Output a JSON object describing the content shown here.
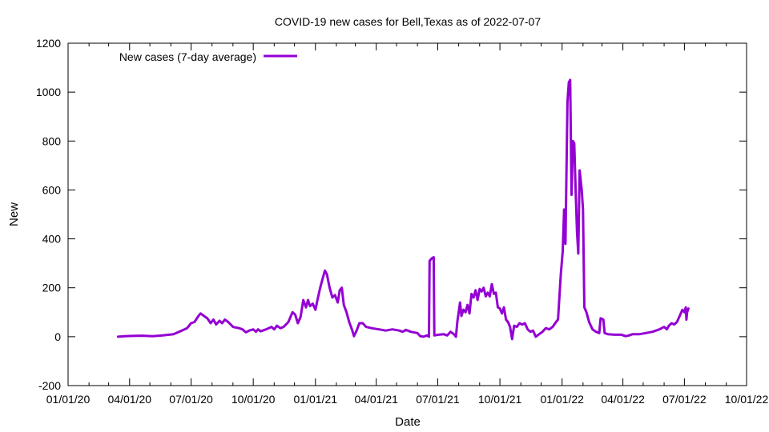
{
  "chart_data": {
    "type": "line",
    "title": "COVID-19 new cases for Bell,Texas as of 2022-07-07",
    "xlabel": "Date",
    "ylabel": "New",
    "ylim": [
      -200,
      1200
    ],
    "xlim": [
      "2020-01-01",
      "2022-10-01"
    ],
    "yticks": [
      -200,
      0,
      200,
      400,
      600,
      800,
      1000,
      1200
    ],
    "xticks": [
      {
        "date": "2020-01-01",
        "label": "01/01/20"
      },
      {
        "date": "2020-04-01",
        "label": "04/01/20"
      },
      {
        "date": "2020-07-01",
        "label": "07/01/20"
      },
      {
        "date": "2020-10-01",
        "label": "10/01/20"
      },
      {
        "date": "2021-01-01",
        "label": "01/01/21"
      },
      {
        "date": "2021-04-01",
        "label": "04/01/21"
      },
      {
        "date": "2021-07-01",
        "label": "07/01/21"
      },
      {
        "date": "2021-10-01",
        "label": "10/01/21"
      },
      {
        "date": "2022-01-01",
        "label": "01/01/22"
      },
      {
        "date": "2022-04-01",
        "label": "04/01/22"
      },
      {
        "date": "2022-07-01",
        "label": "07/01/22"
      },
      {
        "date": "2022-10-01",
        "label": "10/01/22"
      }
    ],
    "grid": false,
    "legend_position": "top-left",
    "series": [
      {
        "name": "New cases (7-day average)",
        "color": "#9400d3",
        "points": [
          [
            "2020-03-15",
            0
          ],
          [
            "2020-03-25",
            2
          ],
          [
            "2020-04-05",
            3
          ],
          [
            "2020-04-20",
            4
          ],
          [
            "2020-05-05",
            2
          ],
          [
            "2020-05-20",
            5
          ],
          [
            "2020-06-05",
            10
          ],
          [
            "2020-06-15",
            22
          ],
          [
            "2020-06-25",
            35
          ],
          [
            "2020-07-01",
            55
          ],
          [
            "2020-07-06",
            60
          ],
          [
            "2020-07-12",
            85
          ],
          [
            "2020-07-15",
            95
          ],
          [
            "2020-07-20",
            85
          ],
          [
            "2020-07-25",
            75
          ],
          [
            "2020-07-30",
            55
          ],
          [
            "2020-08-03",
            70
          ],
          [
            "2020-08-07",
            50
          ],
          [
            "2020-08-12",
            65
          ],
          [
            "2020-08-16",
            55
          ],
          [
            "2020-08-20",
            70
          ],
          [
            "2020-08-25",
            60
          ],
          [
            "2020-09-01",
            40
          ],
          [
            "2020-09-10",
            35
          ],
          [
            "2020-09-15",
            30
          ],
          [
            "2020-09-20",
            18
          ],
          [
            "2020-09-25",
            25
          ],
          [
            "2020-10-01",
            30
          ],
          [
            "2020-10-05",
            20
          ],
          [
            "2020-10-08",
            30
          ],
          [
            "2020-10-12",
            22
          ],
          [
            "2020-10-20",
            30
          ],
          [
            "2020-10-28",
            40
          ],
          [
            "2020-11-01",
            30
          ],
          [
            "2020-11-05",
            45
          ],
          [
            "2020-11-10",
            35
          ],
          [
            "2020-11-15",
            40
          ],
          [
            "2020-11-22",
            60
          ],
          [
            "2020-11-28",
            100
          ],
          [
            "2020-12-02",
            90
          ],
          [
            "2020-12-06",
            55
          ],
          [
            "2020-12-10",
            80
          ],
          [
            "2020-12-14",
            150
          ],
          [
            "2020-12-18",
            120
          ],
          [
            "2020-12-21",
            150
          ],
          [
            "2020-12-24",
            125
          ],
          [
            "2020-12-28",
            135
          ],
          [
            "2021-01-01",
            110
          ],
          [
            "2021-01-04",
            150
          ],
          [
            "2021-01-08",
            200
          ],
          [
            "2021-01-12",
            240
          ],
          [
            "2021-01-15",
            270
          ],
          [
            "2021-01-18",
            255
          ],
          [
            "2021-01-22",
            200
          ],
          [
            "2021-01-26",
            160
          ],
          [
            "2021-01-30",
            170
          ],
          [
            "2021-02-03",
            140
          ],
          [
            "2021-02-06",
            190
          ],
          [
            "2021-02-09",
            200
          ],
          [
            "2021-02-12",
            130
          ],
          [
            "2021-02-16",
            100
          ],
          [
            "2021-02-20",
            60
          ],
          [
            "2021-02-24",
            30
          ],
          [
            "2021-02-27",
            2
          ],
          [
            "2021-03-03",
            25
          ],
          [
            "2021-03-07",
            55
          ],
          [
            "2021-03-12",
            55
          ],
          [
            "2021-03-17",
            40
          ],
          [
            "2021-03-25",
            35
          ],
          [
            "2021-04-05",
            30
          ],
          [
            "2021-04-15",
            25
          ],
          [
            "2021-04-25",
            30
          ],
          [
            "2021-05-05",
            25
          ],
          [
            "2021-05-10",
            20
          ],
          [
            "2021-05-15",
            28
          ],
          [
            "2021-05-22",
            20
          ],
          [
            "2021-06-01",
            15
          ],
          [
            "2021-06-05",
            2
          ],
          [
            "2021-06-10",
            0
          ],
          [
            "2021-06-15",
            5
          ],
          [
            "2021-06-18",
            0
          ],
          [
            "2021-06-19",
            310
          ],
          [
            "2021-06-22",
            320
          ],
          [
            "2021-06-25",
            325
          ],
          [
            "2021-06-26",
            5
          ],
          [
            "2021-07-02",
            8
          ],
          [
            "2021-07-10",
            10
          ],
          [
            "2021-07-15",
            5
          ],
          [
            "2021-07-20",
            20
          ],
          [
            "2021-07-25",
            10
          ],
          [
            "2021-07-28",
            0
          ],
          [
            "2021-07-30",
            60
          ],
          [
            "2021-08-01",
            100
          ],
          [
            "2021-08-03",
            140
          ],
          [
            "2021-08-05",
            85
          ],
          [
            "2021-08-08",
            110
          ],
          [
            "2021-08-11",
            100
          ],
          [
            "2021-08-14",
            130
          ],
          [
            "2021-08-17",
            95
          ],
          [
            "2021-08-20",
            175
          ],
          [
            "2021-08-23",
            160
          ],
          [
            "2021-08-26",
            190
          ],
          [
            "2021-08-29",
            150
          ],
          [
            "2021-09-01",
            195
          ],
          [
            "2021-09-04",
            185
          ],
          [
            "2021-09-07",
            200
          ],
          [
            "2021-09-10",
            165
          ],
          [
            "2021-09-13",
            180
          ],
          [
            "2021-09-16",
            165
          ],
          [
            "2021-09-19",
            215
          ],
          [
            "2021-09-22",
            175
          ],
          [
            "2021-09-25",
            180
          ],
          [
            "2021-09-28",
            120
          ],
          [
            "2021-10-01",
            115
          ],
          [
            "2021-10-04",
            95
          ],
          [
            "2021-10-07",
            120
          ],
          [
            "2021-10-10",
            70
          ],
          [
            "2021-10-13",
            60
          ],
          [
            "2021-10-16",
            40
          ],
          [
            "2021-10-19",
            -10
          ],
          [
            "2021-10-22",
            45
          ],
          [
            "2021-10-26",
            40
          ],
          [
            "2021-10-30",
            55
          ],
          [
            "2021-11-03",
            50
          ],
          [
            "2021-11-07",
            55
          ],
          [
            "2021-11-11",
            30
          ],
          [
            "2021-11-15",
            20
          ],
          [
            "2021-11-19",
            25
          ],
          [
            "2021-11-23",
            0
          ],
          [
            "2021-11-28",
            10
          ],
          [
            "2021-12-03",
            20
          ],
          [
            "2021-12-08",
            35
          ],
          [
            "2021-12-13",
            30
          ],
          [
            "2021-12-18",
            40
          ],
          [
            "2021-12-23",
            60
          ],
          [
            "2021-12-26",
            70
          ],
          [
            "2021-12-30",
            250
          ],
          [
            "2022-01-02",
            350
          ],
          [
            "2022-01-04",
            520
          ],
          [
            "2022-01-06",
            380
          ],
          [
            "2022-01-09",
            960
          ],
          [
            "2022-01-11",
            1040
          ],
          [
            "2022-01-13",
            1050
          ],
          [
            "2022-01-15",
            580
          ],
          [
            "2022-01-17",
            800
          ],
          [
            "2022-01-19",
            790
          ],
          [
            "2022-01-21",
            600
          ],
          [
            "2022-01-23",
            430
          ],
          [
            "2022-01-25",
            340
          ],
          [
            "2022-01-27",
            680
          ],
          [
            "2022-01-30",
            600
          ],
          [
            "2022-02-01",
            520
          ],
          [
            "2022-02-03",
            120
          ],
          [
            "2022-02-06",
            100
          ],
          [
            "2022-02-10",
            60
          ],
          [
            "2022-02-15",
            30
          ],
          [
            "2022-02-20",
            20
          ],
          [
            "2022-02-25",
            15
          ],
          [
            "2022-02-27",
            75
          ],
          [
            "2022-03-03",
            70
          ],
          [
            "2022-03-05",
            15
          ],
          [
            "2022-03-10",
            10
          ],
          [
            "2022-03-20",
            8
          ],
          [
            "2022-03-30",
            8
          ],
          [
            "2022-04-05",
            2
          ],
          [
            "2022-04-10",
            5
          ],
          [
            "2022-04-15",
            10
          ],
          [
            "2022-04-25",
            10
          ],
          [
            "2022-05-05",
            15
          ],
          [
            "2022-05-15",
            20
          ],
          [
            "2022-05-25",
            30
          ],
          [
            "2022-06-01",
            40
          ],
          [
            "2022-06-05",
            30
          ],
          [
            "2022-06-08",
            45
          ],
          [
            "2022-06-12",
            55
          ],
          [
            "2022-06-16",
            50
          ],
          [
            "2022-06-20",
            60
          ],
          [
            "2022-06-24",
            85
          ],
          [
            "2022-06-28",
            110
          ],
          [
            "2022-07-01",
            100
          ],
          [
            "2022-07-03",
            120
          ],
          [
            "2022-07-04",
            70
          ],
          [
            "2022-07-05",
            100
          ],
          [
            "2022-07-07",
            115
          ]
        ]
      }
    ]
  }
}
